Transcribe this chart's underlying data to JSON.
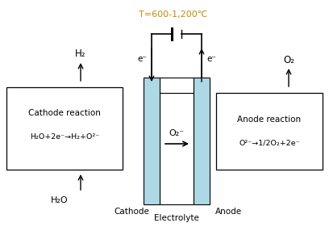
{
  "title": "T=600-1,200℃",
  "title_color": "#cc8800",
  "bg_color": "#ffffff",
  "electrode_color": "#add8e6",
  "cathode_label": "Cathode",
  "anode_label": "Anode",
  "electrolyte_label": "Electrolyte",
  "cathode_reaction_line1": "Cathode reaction",
  "cathode_reaction_line2": "H₂O+2e⁻→H₂+O²⁻",
  "anode_reaction_line1": "Anode reaction",
  "anode_reaction_line2": "O²⁻→1/2O₂+2e⁻",
  "h2_label": "H₂",
  "o2_label": "O₂",
  "h2o_label": "H₂O",
  "o2_ion_label": "O₂⁻",
  "e_minus_left": "e⁻",
  "e_minus_right": "e⁻"
}
